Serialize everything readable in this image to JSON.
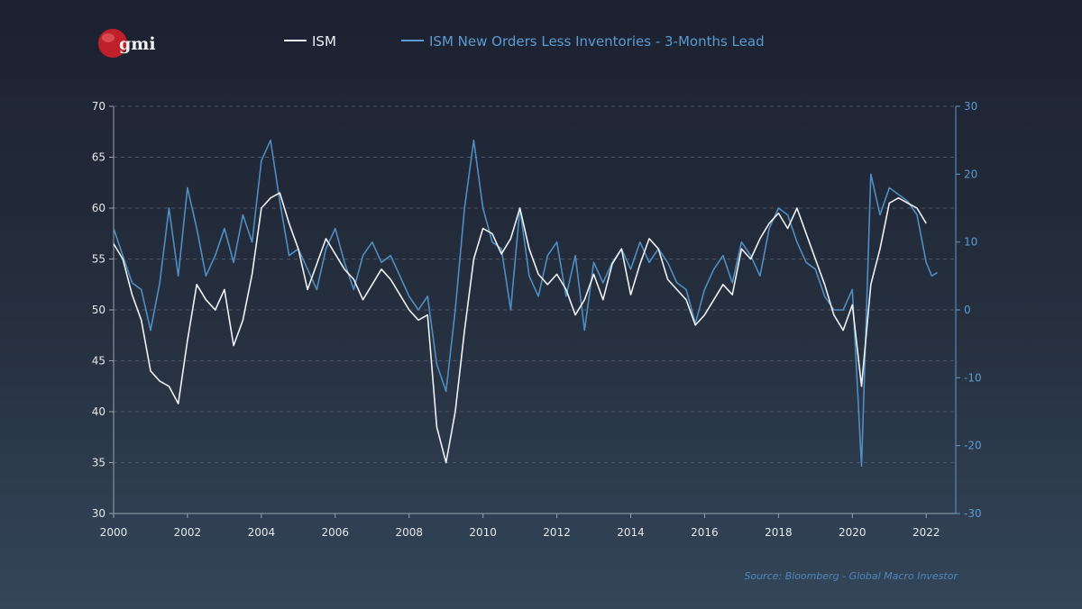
{
  "logo": {
    "text": "gmi"
  },
  "colors": {
    "ism": "#eef1f5",
    "orders": "#4f8ec2",
    "left_axis_text": "#e6e8ec",
    "right_axis_text": "#5b9bd0",
    "grid": "#4a5566",
    "source": "#4f86b6",
    "logo_red": "#c0202a"
  },
  "legend": [
    {
      "label": "ISM",
      "color": "#eef1f5"
    },
    {
      "label": "ISM New Orders Less Inventories - 3-Months Lead",
      "color": "#5b9bd0"
    }
  ],
  "source": "Source: Bloomberg - Global Macro Investor",
  "chart_data": {
    "type": "line",
    "title": "",
    "xlabel": "",
    "ylabel": "",
    "xlim": [
      2000,
      2022.8
    ],
    "ylim_left": [
      30,
      70
    ],
    "ylim_right": [
      -30,
      30
    ],
    "x_ticks": [
      2000,
      2002,
      2004,
      2006,
      2008,
      2010,
      2012,
      2014,
      2016,
      2018,
      2020,
      2022
    ],
    "x_tick_labels": [
      "2000",
      "2002",
      "2004",
      "2006",
      "2008",
      "2010",
      "2012",
      "2014",
      "2016",
      "2018",
      "2020",
      "2022"
    ],
    "left_ticks": [
      30,
      35,
      40,
      45,
      50,
      55,
      60,
      65,
      70
    ],
    "left_tick_labels": [
      "30",
      "35",
      "40",
      "45",
      "50",
      "55",
      "60",
      "65",
      "70"
    ],
    "right_ticks": [
      -30,
      -20,
      -10,
      0,
      10,
      20,
      30
    ],
    "right_tick_labels": [
      "-30",
      "-20",
      "-10",
      "0",
      "10",
      "20",
      "30"
    ],
    "grid": "horizontal dashed",
    "legend_position": "top",
    "series": [
      {
        "name": "ISM",
        "axis": "left",
        "x": [
          2000.0,
          2000.25,
          2000.5,
          2000.75,
          2001.0,
          2001.25,
          2001.5,
          2001.75,
          2002.0,
          2002.25,
          2002.5,
          2002.75,
          2003.0,
          2003.25,
          2003.5,
          2003.75,
          2004.0,
          2004.25,
          2004.5,
          2004.75,
          2005.0,
          2005.25,
          2005.5,
          2005.75,
          2006.0,
          2006.25,
          2006.5,
          2006.75,
          2007.0,
          2007.25,
          2007.5,
          2007.75,
          2008.0,
          2008.25,
          2008.5,
          2008.75,
          2009.0,
          2009.25,
          2009.5,
          2009.75,
          2010.0,
          2010.25,
          2010.5,
          2010.75,
          2011.0,
          2011.25,
          2011.5,
          2011.75,
          2012.0,
          2012.25,
          2012.5,
          2012.75,
          2013.0,
          2013.25,
          2013.5,
          2013.75,
          2014.0,
          2014.25,
          2014.5,
          2014.75,
          2015.0,
          2015.25,
          2015.5,
          2015.75,
          2016.0,
          2016.25,
          2016.5,
          2016.75,
          2017.0,
          2017.25,
          2017.5,
          2017.75,
          2018.0,
          2018.25,
          2018.5,
          2018.75,
          2019.0,
          2019.25,
          2019.5,
          2019.75,
          2020.0,
          2020.25,
          2020.5,
          2020.75,
          2021.0,
          2021.25,
          2021.5,
          2021.75,
          2022.0
        ],
        "y": [
          56.5,
          55.0,
          51.5,
          49.0,
          44.0,
          43.0,
          42.5,
          40.8,
          47.0,
          52.5,
          51.0,
          50.0,
          52.0,
          46.5,
          49.0,
          53.5,
          60.0,
          61.0,
          61.5,
          58.5,
          56.0,
          52.0,
          54.5,
          57.0,
          55.5,
          54.0,
          53.0,
          51.0,
          52.5,
          54.0,
          53.0,
          51.5,
          50.0,
          49.0,
          49.5,
          38.5,
          35.0,
          40.0,
          48.0,
          55.0,
          58.0,
          57.5,
          55.5,
          57.0,
          60.0,
          56.0,
          53.5,
          52.5,
          53.5,
          52.0,
          49.5,
          51.0,
          53.5,
          51.0,
          54.5,
          56.0,
          51.5,
          54.5,
          57.0,
          56.0,
          53.0,
          52.0,
          51.0,
          48.5,
          49.5,
          51.0,
          52.5,
          51.5,
          56.0,
          55.0,
          57.0,
          58.5,
          59.5,
          58.0,
          60.0,
          57.5,
          55.0,
          52.5,
          49.5,
          48.0,
          50.5,
          42.5,
          52.5,
          56.0,
          60.5,
          61.0,
          60.5,
          60.0,
          58.5
        ]
      },
      {
        "name": "ISM New Orders Less Inventories - 3-Months Lead",
        "axis": "right",
        "x": [
          2000.0,
          2000.25,
          2000.5,
          2000.75,
          2001.0,
          2001.25,
          2001.5,
          2001.75,
          2002.0,
          2002.25,
          2002.5,
          2002.75,
          2003.0,
          2003.25,
          2003.5,
          2003.75,
          2004.0,
          2004.25,
          2004.5,
          2004.75,
          2005.0,
          2005.25,
          2005.5,
          2005.75,
          2006.0,
          2006.25,
          2006.5,
          2006.75,
          2007.0,
          2007.25,
          2007.5,
          2007.75,
          2008.0,
          2008.25,
          2008.5,
          2008.75,
          2009.0,
          2009.25,
          2009.5,
          2009.75,
          2010.0,
          2010.25,
          2010.5,
          2010.75,
          2011.0,
          2011.25,
          2011.5,
          2011.75,
          2012.0,
          2012.25,
          2012.5,
          2012.75,
          2013.0,
          2013.25,
          2013.5,
          2013.75,
          2014.0,
          2014.25,
          2014.5,
          2014.75,
          2015.0,
          2015.25,
          2015.5,
          2015.75,
          2016.0,
          2016.25,
          2016.5,
          2016.75,
          2017.0,
          2017.25,
          2017.5,
          2017.75,
          2018.0,
          2018.25,
          2018.5,
          2018.75,
          2019.0,
          2019.25,
          2019.5,
          2019.75,
          2020.0,
          2020.25,
          2020.5,
          2020.75,
          2021.0,
          2021.25,
          2021.5,
          2021.75,
          2022.0,
          2022.15,
          2022.3
        ],
        "y": [
          12.0,
          8.0,
          4.0,
          3.0,
          -3.0,
          4.0,
          15.0,
          5.0,
          18.0,
          12.0,
          5.0,
          8.0,
          12.0,
          7.0,
          14.0,
          10.0,
          22.0,
          25.0,
          16.0,
          8.0,
          9.0,
          6.0,
          3.0,
          9.0,
          12.0,
          7.0,
          3.0,
          8.0,
          10.0,
          7.0,
          8.0,
          5.0,
          2.0,
          0.0,
          2.0,
          -8.0,
          -12.0,
          0.0,
          15.0,
          25.0,
          15.0,
          10.0,
          9.0,
          0.0,
          15.0,
          5.0,
          2.0,
          8.0,
          10.0,
          2.0,
          8.0,
          -3.0,
          7.0,
          4.0,
          7.0,
          9.0,
          6.0,
          10.0,
          7.0,
          9.0,
          7.0,
          4.0,
          3.0,
          -2.0,
          3.0,
          6.0,
          8.0,
          4.0,
          10.0,
          8.0,
          5.0,
          12.0,
          15.0,
          14.0,
          10.0,
          7.0,
          6.0,
          2.0,
          0.0,
          0.0,
          3.0,
          -23.0,
          20.0,
          14.0,
          18.0,
          17.0,
          16.0,
          14.0,
          7.0,
          5.0,
          5.5
        ]
      }
    ]
  }
}
